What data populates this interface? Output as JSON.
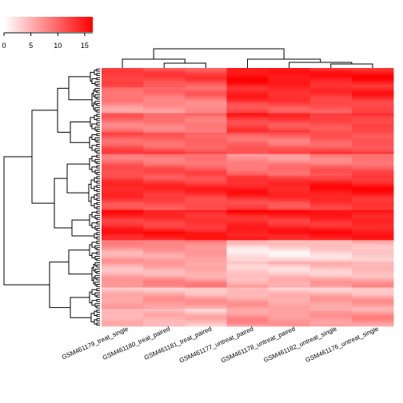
{
  "chart_data": {
    "type": "heatmap",
    "title": "",
    "color_scale": {
      "low": "#FFFFFF",
      "high": "#FF0000",
      "min": 0,
      "max": 16.5
    },
    "color_key": {
      "ticks": [
        "0",
        "5",
        "10",
        "15"
      ]
    },
    "columns": [
      "GSM461179_treat_single",
      "GSM461180_treat_paired",
      "GSM461181_treat_paired",
      "GSM461177_untreat_paired",
      "GSM461178_untreat_paired",
      "GSM461182_untreat_single",
      "GSM461176_untreat_single"
    ],
    "row_dendrogram": true,
    "column_dendrogram": true,
    "row_count": 120,
    "blocks": [
      {
        "rows": 9,
        "values": [
          11.5,
          11.0,
          11.0,
          14.5,
          14.0,
          13.5,
          14.0
        ]
      },
      {
        "rows": 12,
        "values": [
          8.0,
          8.0,
          8.5,
          13.0,
          12.5,
          12.0,
          13.0
        ]
      },
      {
        "rows": 9,
        "values": [
          10.0,
          9.5,
          9.5,
          13.5,
          13.0,
          12.5,
          13.0
        ]
      },
      {
        "rows": 10,
        "values": [
          11.5,
          11.0,
          11.0,
          11.0,
          10.5,
          11.5,
          12.0
        ]
      },
      {
        "rows": 10,
        "values": [
          10.5,
          10.0,
          10.0,
          8.5,
          8.5,
          9.5,
          10.0
        ]
      },
      {
        "rows": 16,
        "values": [
          13.0,
          12.5,
          12.5,
          13.5,
          13.0,
          14.0,
          14.0
        ]
      },
      {
        "rows": 10,
        "values": [
          14.5,
          14.0,
          14.0,
          15.0,
          14.5,
          15.0,
          15.0
        ]
      },
      {
        "rows": 4,
        "values": [
          16.0,
          16.0,
          16.0,
          16.0,
          16.0,
          16.0,
          16.0
        ]
      },
      {
        "rows": 10,
        "values": [
          7.0,
          7.5,
          7.5,
          3.0,
          3.0,
          4.0,
          4.5
        ]
      },
      {
        "rows": 12,
        "values": [
          6.0,
          6.5,
          6.5,
          4.5,
          4.5,
          5.0,
          5.5
        ]
      },
      {
        "rows": 10,
        "values": [
          5.0,
          5.5,
          5.0,
          5.0,
          4.5,
          5.0,
          5.0
        ]
      },
      {
        "rows": 8,
        "values": [
          4.0,
          4.0,
          3.5,
          6.0,
          5.5,
          5.5,
          6.0
        ]
      }
    ]
  }
}
